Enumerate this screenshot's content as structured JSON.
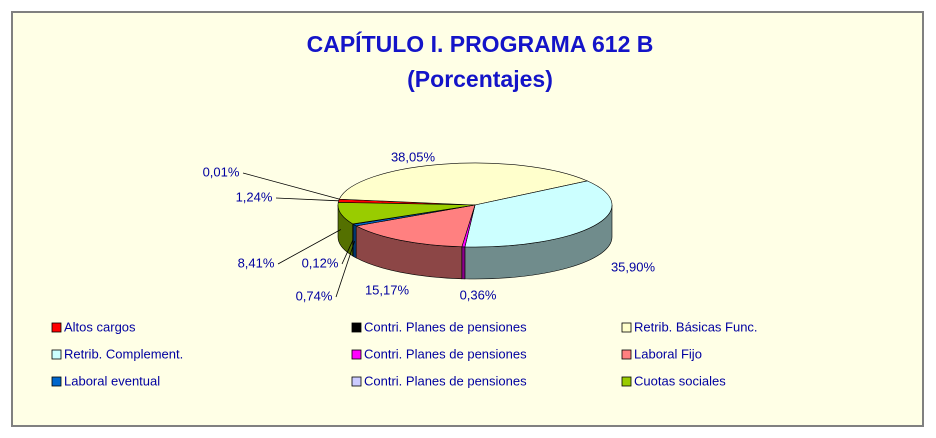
{
  "chart_data": {
    "type": "pie",
    "title": "CAPÍTULO I. PROGRAMA 612 B",
    "subtitle": "(Porcentajes)",
    "categories": [
      "Altos cargos",
      "Contri. Planes de pensiones",
      "Retrib. Básicas Func.",
      "Retrib. Complement.",
      "Contri. Planes de pensiones",
      "Laboral Fijo",
      "Laboral eventual",
      "Contri. Planes de pensiones",
      "Cuotas sociales"
    ],
    "values": [
      1.24,
      0.01,
      38.05,
      35.9,
      0.36,
      15.17,
      0.74,
      0.12,
      8.41
    ],
    "value_labels": [
      "1,24%",
      "0,01%",
      "38,05%",
      "35,90%",
      "0,36%",
      "15,17%",
      "0,74%",
      "0,12%",
      "8,41%"
    ],
    "colors": [
      "#FF0000",
      "#000000",
      "#FFFFCC",
      "#CCFFFF",
      "#FF00FF",
      "#FF8080",
      "#0066CC",
      "#CCCCFF",
      "#99CC00"
    ],
    "legend": "bottom"
  }
}
